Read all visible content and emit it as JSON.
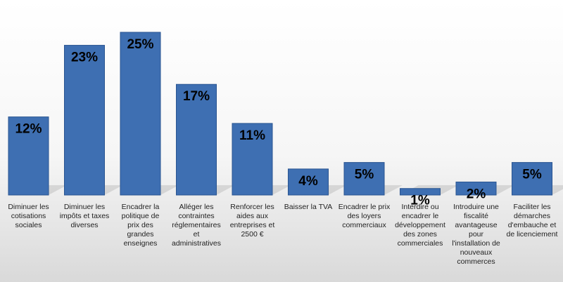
{
  "chart_data": {
    "type": "bar",
    "title": "",
    "xlabel": "",
    "ylabel": "",
    "ylim": [
      0,
      25
    ],
    "grid": false,
    "colors": {
      "bar": "#3e6fb2",
      "bar_edge": "#2a5591"
    },
    "categories": [
      [
        "Diminuer les",
        "cotisations",
        "sociales"
      ],
      [
        "Diminuer les",
        "impôts et taxes",
        "diverses"
      ],
      [
        "Encadrer la",
        "politique de",
        "prix des",
        "grandes",
        "enseignes"
      ],
      [
        "Alléger les",
        "contraintes",
        "réglementaires",
        "et",
        "administratives"
      ],
      [
        "Renforcer les",
        "aides aux",
        "entreprises et",
        "2500 €"
      ],
      [
        "Baisser la TVA"
      ],
      [
        "Encadrer le prix",
        "des loyers",
        "commerciaux"
      ],
      [
        "Interdire ou",
        "encadrer le",
        "développement",
        "des zones",
        "commerciales"
      ],
      [
        "Introduire une",
        "fiscalité",
        "avantageuse",
        "pour",
        "l'installation de",
        "nouveaux",
        "commerces"
      ],
      [
        "Faciliter les",
        "démarches",
        "d'embauche et",
        "de licenciement"
      ]
    ],
    "values": [
      12,
      23,
      25,
      17,
      11,
      4,
      5,
      1,
      2,
      5
    ],
    "value_labels": [
      "12%",
      "23%",
      "25%",
      "17%",
      "11%",
      "4%",
      "5%",
      "1%",
      "2%",
      "5%"
    ]
  }
}
